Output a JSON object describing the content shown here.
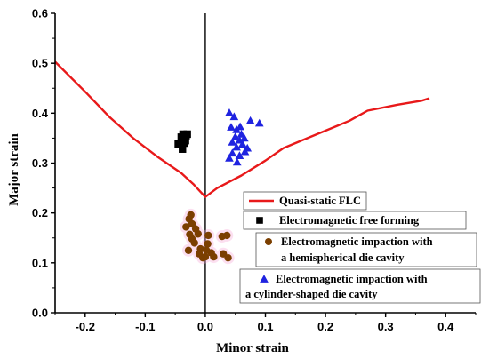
{
  "chart_data": {
    "type": "scatter",
    "title": "",
    "xlabel": "Minor strain",
    "ylabel": "Major strain",
    "xlim": [
      -0.25,
      0.45
    ],
    "ylim": [
      0.0,
      0.6
    ],
    "x_ticks": [
      "-0.2",
      "-0.1",
      "0.0",
      "0.1",
      "0.2",
      "0.3",
      "0.4"
    ],
    "x_tick_values": [
      -0.2,
      -0.1,
      0.0,
      0.1,
      0.2,
      0.3,
      0.4
    ],
    "y_ticks": [
      "0.0",
      "0.1",
      "0.2",
      "0.3",
      "0.4",
      "0.5",
      "0.6"
    ],
    "y_tick_values": [
      0.0,
      0.1,
      0.2,
      0.3,
      0.4,
      0.5,
      0.6
    ],
    "grid": false,
    "vertical_reference_line_x": 0.0,
    "flc": {
      "label": "Quasi-static FLC",
      "color": "#e8191a",
      "points": [
        [
          -0.25,
          0.503
        ],
        [
          -0.2,
          0.443
        ],
        [
          -0.16,
          0.393
        ],
        [
          -0.12,
          0.35
        ],
        [
          -0.08,
          0.313
        ],
        [
          -0.04,
          0.28
        ],
        [
          -0.02,
          0.258
        ],
        [
          0.0,
          0.232
        ],
        [
          0.02,
          0.25
        ],
        [
          0.06,
          0.275
        ],
        [
          0.1,
          0.305
        ],
        [
          0.13,
          0.33
        ],
        [
          0.17,
          0.35
        ],
        [
          0.2,
          0.365
        ],
        [
          0.24,
          0.385
        ],
        [
          0.27,
          0.405
        ],
        [
          0.32,
          0.417
        ],
        [
          0.36,
          0.425
        ],
        [
          0.373,
          0.43
        ]
      ]
    },
    "series": [
      {
        "name": "Electromagnetic  free forming",
        "marker": "square",
        "color": "#000000",
        "points": [
          [
            -0.045,
            0.338
          ],
          [
            -0.038,
            0.345
          ],
          [
            -0.04,
            0.352
          ],
          [
            -0.037,
            0.358
          ],
          [
            -0.032,
            0.355
          ],
          [
            -0.03,
            0.358
          ],
          [
            -0.035,
            0.34
          ],
          [
            -0.038,
            0.328
          ],
          [
            -0.033,
            0.345
          ]
        ]
      },
      {
        "name": "Electromagnetic impaction with",
        "name_line2": "a  hemispherical  die cavity",
        "marker": "circle",
        "color": "#7b3f00",
        "points": [
          [
            -0.032,
            0.172
          ],
          [
            -0.027,
            0.188
          ],
          [
            -0.024,
            0.196
          ],
          [
            -0.022,
            0.178
          ],
          [
            -0.026,
            0.157
          ],
          [
            -0.022,
            0.148
          ],
          [
            -0.018,
            0.14
          ],
          [
            -0.028,
            0.125
          ],
          [
            -0.012,
            0.158
          ],
          [
            -0.008,
            0.128
          ],
          [
            -0.01,
            0.118
          ],
          [
            -0.004,
            0.11
          ],
          [
            0.0,
            0.112
          ],
          [
            0.005,
            0.155
          ],
          [
            0.004,
            0.138
          ],
          [
            0.01,
            0.12
          ],
          [
            0.014,
            0.112
          ],
          [
            0.03,
            0.118
          ],
          [
            0.028,
            0.153
          ],
          [
            0.036,
            0.155
          ],
          [
            0.038,
            0.11
          ],
          [
            0.002,
            0.125
          ],
          [
            -0.016,
            0.168
          ]
        ]
      },
      {
        "name": "Electromagnetic impaction with",
        "name_line2": "a cylinder-shaped  die cavity",
        "marker": "triangle",
        "color": "#1f23e0",
        "points": [
          [
            0.04,
            0.401
          ],
          [
            0.048,
            0.393
          ],
          [
            0.043,
            0.372
          ],
          [
            0.052,
            0.367
          ],
          [
            0.058,
            0.373
          ],
          [
            0.06,
            0.358
          ],
          [
            0.05,
            0.353
          ],
          [
            0.057,
            0.346
          ],
          [
            0.065,
            0.35
          ],
          [
            0.045,
            0.342
          ],
          [
            0.062,
            0.338
          ],
          [
            0.052,
            0.332
          ],
          [
            0.07,
            0.33
          ],
          [
            0.066,
            0.323
          ],
          [
            0.057,
            0.315
          ],
          [
            0.045,
            0.32
          ],
          [
            0.04,
            0.31
          ],
          [
            0.053,
            0.302
          ],
          [
            0.075,
            0.385
          ],
          [
            0.09,
            0.38
          ]
        ]
      }
    ],
    "legend_position": "center-right"
  }
}
